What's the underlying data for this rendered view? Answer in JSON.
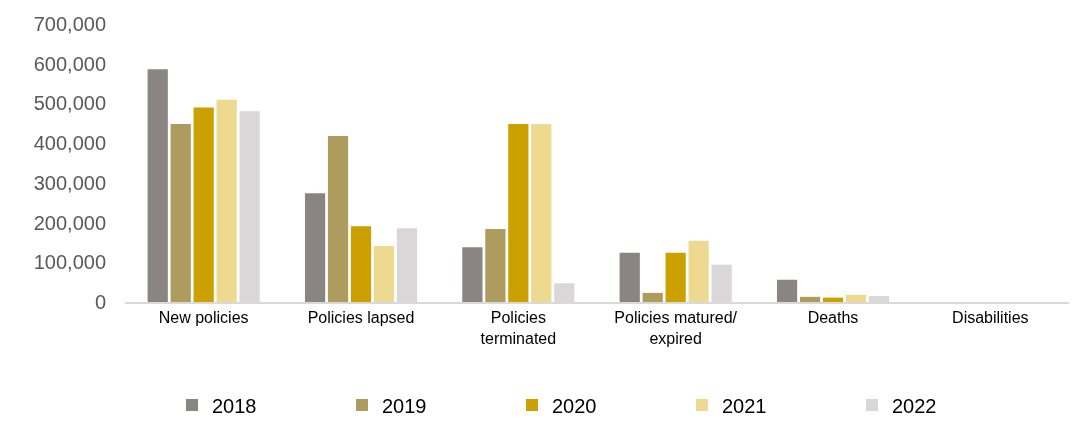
{
  "chart_data": {
    "type": "bar",
    "categories": [
      "New policies",
      "Policies lapsed",
      "Policies\nterminated",
      "Policies matured/\nexpired",
      "Deaths",
      "Disabilities"
    ],
    "series": [
      {
        "name": "2018",
        "color": "#8a8482",
        "values": [
          586000,
          274000,
          138000,
          124000,
          56000,
          0
        ]
      },
      {
        "name": "2019",
        "color": "#ae9b5e",
        "values": [
          448000,
          418000,
          184000,
          23000,
          13000,
          0
        ]
      },
      {
        "name": "2020",
        "color": "#cca000",
        "values": [
          490000,
          191000,
          448000,
          124000,
          11000,
          0
        ]
      },
      {
        "name": "2021",
        "color": "#edd98f",
        "values": [
          509000,
          141000,
          448000,
          154000,
          18000,
          0
        ]
      },
      {
        "name": "2022",
        "color": "#d9d7d7",
        "values": [
          480000,
          186000,
          47000,
          94000,
          15000,
          0
        ]
      }
    ],
    "ylim": [
      0,
      700000
    ],
    "yticks": [
      {
        "value": 0,
        "label": "0"
      },
      {
        "value": 100000,
        "label": "100,000"
      },
      {
        "value": 200000,
        "label": "200,000"
      },
      {
        "value": 300000,
        "label": "300,000"
      },
      {
        "value": 400000,
        "label": "400,000"
      },
      {
        "value": 500000,
        "label": "500,000"
      },
      {
        "value": 600000,
        "label": "600,000"
      },
      {
        "value": 700000,
        "label": "700,000"
      }
    ],
    "legend": "bottom"
  }
}
